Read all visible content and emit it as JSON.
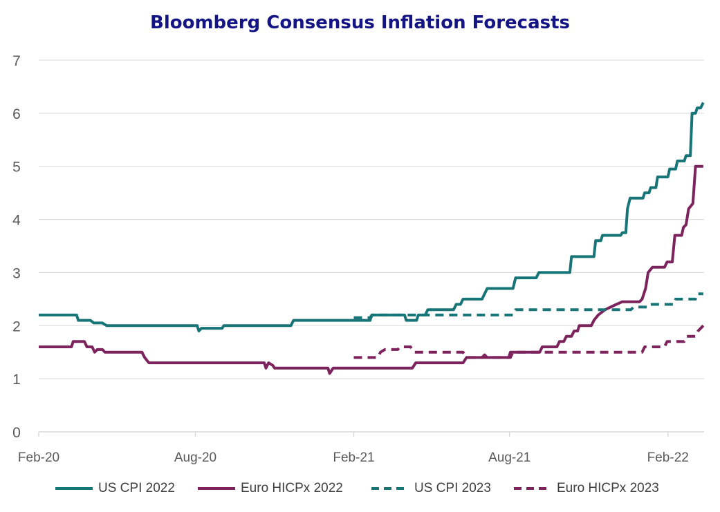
{
  "chart_data": {
    "type": "line",
    "title": "Bloomberg Consensus Inflation Forecasts",
    "xlabel": "",
    "ylabel": "",
    "ylim": [
      0,
      7
    ],
    "y_ticks": [
      "0",
      "1",
      "2",
      "3",
      "4",
      "5",
      "6",
      "7"
    ],
    "x_range": [
      "2020-02-01",
      "2022-03-15"
    ],
    "x_ticks": [
      {
        "label": "Feb-20",
        "date": "2020-02-01"
      },
      {
        "label": "Aug-20",
        "date": "2020-08-01"
      },
      {
        "label": "Feb-21",
        "date": "2021-02-01"
      },
      {
        "label": "Aug-21",
        "date": "2021-08-01"
      },
      {
        "label": "Feb-22",
        "date": "2022-02-01"
      }
    ],
    "grid": "horizontal",
    "legend_position": "bottom",
    "series": [
      {
        "name": "US CPI 2022",
        "color": "#177578",
        "dash": "solid",
        "points": [
          [
            "2020-02-01",
            2.2
          ],
          [
            "2020-03-16",
            2.2
          ],
          [
            "2020-03-18",
            2.1
          ],
          [
            "2020-04-01",
            2.1
          ],
          [
            "2020-04-05",
            2.05
          ],
          [
            "2020-04-15",
            2.05
          ],
          [
            "2020-04-20",
            2.0
          ],
          [
            "2020-08-03",
            2.0
          ],
          [
            "2020-08-05",
            1.9
          ],
          [
            "2020-08-08",
            1.95
          ],
          [
            "2020-09-01",
            1.95
          ],
          [
            "2020-09-03",
            2.0
          ],
          [
            "2020-11-20",
            2.0
          ],
          [
            "2020-11-23",
            2.1
          ],
          [
            "2021-02-20",
            2.1
          ],
          [
            "2021-02-22",
            2.2
          ],
          [
            "2021-04-01",
            2.2
          ],
          [
            "2021-04-03",
            2.1
          ],
          [
            "2021-04-15",
            2.1
          ],
          [
            "2021-04-17",
            2.2
          ],
          [
            "2021-04-25",
            2.2
          ],
          [
            "2021-04-28",
            2.3
          ],
          [
            "2021-05-28",
            2.3
          ],
          [
            "2021-05-31",
            2.4
          ],
          [
            "2021-06-05",
            2.4
          ],
          [
            "2021-06-08",
            2.5
          ],
          [
            "2021-06-30",
            2.5
          ],
          [
            "2021-07-03",
            2.6
          ],
          [
            "2021-07-06",
            2.7
          ],
          [
            "2021-08-05",
            2.7
          ],
          [
            "2021-08-08",
            2.9
          ],
          [
            "2021-09-01",
            2.9
          ],
          [
            "2021-09-04",
            3.0
          ],
          [
            "2021-10-10",
            3.0
          ],
          [
            "2021-10-12",
            3.3
          ],
          [
            "2021-11-07",
            3.3
          ],
          [
            "2021-11-09",
            3.6
          ],
          [
            "2021-11-15",
            3.6
          ],
          [
            "2021-11-17",
            3.7
          ],
          [
            "2021-12-08",
            3.7
          ],
          [
            "2021-12-10",
            3.75
          ],
          [
            "2021-12-14",
            3.75
          ],
          [
            "2021-12-16",
            4.2
          ],
          [
            "2021-12-19",
            4.4
          ],
          [
            "2022-01-03",
            4.4
          ],
          [
            "2022-01-05",
            4.5
          ],
          [
            "2022-01-10",
            4.5
          ],
          [
            "2022-01-12",
            4.6
          ],
          [
            "2022-01-18",
            4.6
          ],
          [
            "2022-01-20",
            4.8
          ],
          [
            "2022-02-01",
            4.8
          ],
          [
            "2022-02-03",
            4.95
          ],
          [
            "2022-02-10",
            4.95
          ],
          [
            "2022-02-12",
            5.1
          ],
          [
            "2022-02-20",
            5.1
          ],
          [
            "2022-02-22",
            5.2
          ],
          [
            "2022-02-27",
            5.2
          ],
          [
            "2022-03-01",
            6.0
          ],
          [
            "2022-03-05",
            6.0
          ],
          [
            "2022-03-07",
            6.1
          ],
          [
            "2022-03-11",
            6.1
          ],
          [
            "2022-03-14",
            6.2
          ]
        ]
      },
      {
        "name": "Euro HICPx 2022",
        "color": "#7C235E",
        "dash": "solid",
        "points": [
          [
            "2020-02-01",
            1.6
          ],
          [
            "2020-03-10",
            1.6
          ],
          [
            "2020-03-12",
            1.7
          ],
          [
            "2020-03-25",
            1.7
          ],
          [
            "2020-03-28",
            1.6
          ],
          [
            "2020-04-03",
            1.6
          ],
          [
            "2020-04-06",
            1.5
          ],
          [
            "2020-04-09",
            1.55
          ],
          [
            "2020-04-15",
            1.55
          ],
          [
            "2020-04-18",
            1.5
          ],
          [
            "2020-05-31",
            1.5
          ],
          [
            "2020-06-03",
            1.4
          ],
          [
            "2020-06-08",
            1.3
          ],
          [
            "2020-10-20",
            1.3
          ],
          [
            "2020-10-22",
            1.2
          ],
          [
            "2020-10-25",
            1.3
          ],
          [
            "2020-10-30",
            1.25
          ],
          [
            "2020-11-01",
            1.2
          ],
          [
            "2021-01-02",
            1.2
          ],
          [
            "2021-01-04",
            1.1
          ],
          [
            "2021-01-08",
            1.2
          ],
          [
            "2021-04-10",
            1.2
          ],
          [
            "2021-04-14",
            1.3
          ],
          [
            "2021-06-08",
            1.3
          ],
          [
            "2021-06-12",
            1.4
          ],
          [
            "2021-07-31",
            1.4
          ],
          [
            "2021-08-02",
            1.5
          ],
          [
            "2021-09-05",
            1.5
          ],
          [
            "2021-09-08",
            1.6
          ],
          [
            "2021-09-25",
            1.6
          ],
          [
            "2021-09-28",
            1.7
          ],
          [
            "2021-10-03",
            1.7
          ],
          [
            "2021-10-06",
            1.8
          ],
          [
            "2021-10-12",
            1.8
          ],
          [
            "2021-10-15",
            1.9
          ],
          [
            "2021-10-19",
            1.9
          ],
          [
            "2021-10-21",
            2.0
          ],
          [
            "2021-11-04",
            2.0
          ],
          [
            "2021-11-07",
            2.1
          ],
          [
            "2021-11-12",
            2.2
          ],
          [
            "2021-11-20",
            2.3
          ],
          [
            "2021-12-03",
            2.4
          ],
          [
            "2021-12-10",
            2.45
          ],
          [
            "2021-12-30",
            2.45
          ],
          [
            "2022-01-02",
            2.5
          ],
          [
            "2022-01-06",
            2.7
          ],
          [
            "2022-01-09",
            3.0
          ],
          [
            "2022-01-14",
            3.1
          ],
          [
            "2022-01-28",
            3.1
          ],
          [
            "2022-01-31",
            3.2
          ],
          [
            "2022-02-06",
            3.2
          ],
          [
            "2022-02-09",
            3.7
          ],
          [
            "2022-02-17",
            3.7
          ],
          [
            "2022-02-19",
            3.85
          ],
          [
            "2022-02-22",
            3.9
          ],
          [
            "2022-02-25",
            4.2
          ],
          [
            "2022-03-02",
            4.3
          ],
          [
            "2022-03-05",
            5.0
          ],
          [
            "2022-03-14",
            5.0
          ]
        ]
      },
      {
        "name": "US CPI 2023",
        "color": "#177578",
        "dash": "dashed",
        "points": [
          [
            "2021-02-01",
            2.15
          ],
          [
            "2021-02-20",
            2.15
          ],
          [
            "2021-02-22",
            2.2
          ],
          [
            "2021-08-05",
            2.2
          ],
          [
            "2021-08-08",
            2.3
          ],
          [
            "2021-12-20",
            2.3
          ],
          [
            "2021-12-23",
            2.35
          ],
          [
            "2022-01-10",
            2.35
          ],
          [
            "2022-01-12",
            2.4
          ],
          [
            "2022-02-08",
            2.4
          ],
          [
            "2022-02-10",
            2.5
          ],
          [
            "2022-03-05",
            2.5
          ],
          [
            "2022-03-07",
            2.6
          ],
          [
            "2022-03-14",
            2.6
          ]
        ]
      },
      {
        "name": "Euro HICPx 2023",
        "color": "#7C235E",
        "dash": "dashed",
        "points": [
          [
            "2021-02-01",
            1.4
          ],
          [
            "2021-03-01",
            1.4
          ],
          [
            "2021-03-04",
            1.5
          ],
          [
            "2021-03-09",
            1.55
          ],
          [
            "2021-03-24",
            1.55
          ],
          [
            "2021-03-27",
            1.6
          ],
          [
            "2021-04-08",
            1.6
          ],
          [
            "2021-04-12",
            1.5
          ],
          [
            "2021-06-08",
            1.5
          ],
          [
            "2021-06-12",
            1.4
          ],
          [
            "2021-06-30",
            1.4
          ],
          [
            "2021-07-03",
            1.45
          ],
          [
            "2021-07-06",
            1.4
          ],
          [
            "2021-08-02",
            1.4
          ],
          [
            "2021-08-05",
            1.5
          ],
          [
            "2022-01-02",
            1.5
          ],
          [
            "2022-01-05",
            1.6
          ],
          [
            "2022-01-28",
            1.6
          ],
          [
            "2022-01-31",
            1.7
          ],
          [
            "2022-02-20",
            1.7
          ],
          [
            "2022-02-23",
            1.8
          ],
          [
            "2022-03-05",
            1.8
          ],
          [
            "2022-03-08",
            1.9
          ],
          [
            "2022-03-14",
            2.0
          ]
        ]
      }
    ]
  }
}
